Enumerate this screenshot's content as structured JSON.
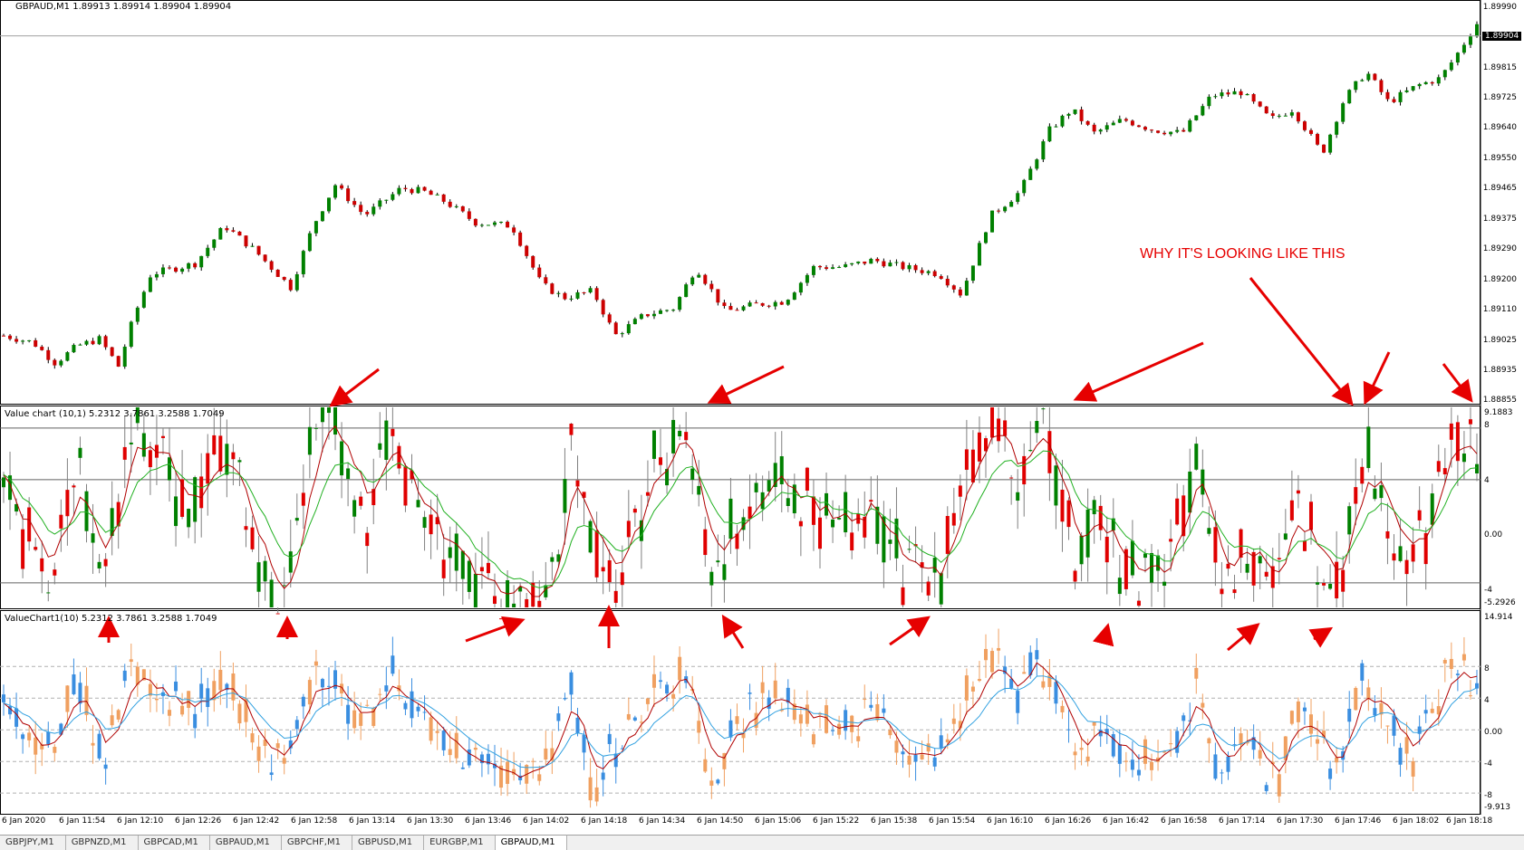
{
  "main_chart": {
    "header": "GBPAUD,M1  1.89913 1.89914 1.89904 1.89904",
    "price_ticks": [
      "1.89990",
      "1.89815",
      "1.89725",
      "1.89640",
      "1.89550",
      "1.89465",
      "1.89375",
      "1.89290",
      "1.89200",
      "1.89110",
      "1.89025",
      "1.88935",
      "1.88855"
    ],
    "current_price": "1.89904",
    "tick_min": 1.88855,
    "tick_max": 1.8999,
    "current_value": 1.89904,
    "bull_color": "#008000",
    "bear_color": "#cc0000",
    "wick_color": "#000000"
  },
  "value_chart_1": {
    "header": "Value chart (10,1) 5.2312 3.7861 3.2588 1.7049",
    "ticks": [
      "9.1883",
      "8",
      "4",
      "0.00",
      "-4",
      "-5.2926"
    ],
    "up_color": "#008000",
    "down_color": "#e00000",
    "wick_color": "#808080",
    "line1_color": "#b00000",
    "line2_color": "#20b020"
  },
  "value_chart_2": {
    "header": "ValueChart1(10) 5.2312 3.7861 3.2588 1.7049",
    "ticks": [
      "14.914",
      "8",
      "4",
      "0.00",
      "-4",
      "-8",
      "-9.913"
    ],
    "up_color": "#3a8ee0",
    "down_color": "#f0a060",
    "line1_color": "#b00000",
    "line2_color": "#30a0e0"
  },
  "annotation": {
    "text": "WHY IT'S LOOKING LIKE THIS",
    "color": "#e60000"
  },
  "time_axis": [
    "6 Jan 2020",
    "6 Jan 11:54",
    "6 Jan 12:10",
    "6 Jan 12:26",
    "6 Jan 12:42",
    "6 Jan 12:58",
    "6 Jan 13:14",
    "6 Jan 13:30",
    "6 Jan 13:46",
    "6 Jan 14:02",
    "6 Jan 14:18",
    "6 Jan 14:34",
    "6 Jan 14:50",
    "6 Jan 15:06",
    "6 Jan 15:22",
    "6 Jan 15:38",
    "6 Jan 15:54",
    "6 Jan 16:10",
    "6 Jan 16:26",
    "6 Jan 16:42",
    "6 Jan 16:58",
    "6 Jan 17:14",
    "6 Jan 17:30",
    "6 Jan 17:46",
    "6 Jan 18:02",
    "6 Jan 18:18"
  ],
  "price_path": [
    {
      "t": 0,
      "v": 1.8903
    },
    {
      "t": 0.02,
      "v": 1.8901
    },
    {
      "t": 0.035,
      "v": 1.8895
    },
    {
      "t": 0.05,
      "v": 1.89
    },
    {
      "t": 0.065,
      "v": 1.8902
    },
    {
      "t": 0.078,
      "v": 1.8894
    },
    {
      "t": 0.088,
      "v": 1.8908
    },
    {
      "t": 0.1,
      "v": 1.8921
    },
    {
      "t": 0.13,
      "v": 1.8924
    },
    {
      "t": 0.15,
      "v": 1.8935
    },
    {
      "t": 0.17,
      "v": 1.8928
    },
    {
      "t": 0.195,
      "v": 1.8917
    },
    {
      "t": 0.21,
      "v": 1.8935
    },
    {
      "t": 0.225,
      "v": 1.8947
    },
    {
      "t": 0.245,
      "v": 1.8938
    },
    {
      "t": 0.27,
      "v": 1.8946
    },
    {
      "t": 0.285,
      "v": 1.8945
    },
    {
      "t": 0.3,
      "v": 1.8942
    },
    {
      "t": 0.32,
      "v": 1.8936
    },
    {
      "t": 0.345,
      "v": 1.8935
    },
    {
      "t": 0.365,
      "v": 1.8918
    },
    {
      "t": 0.38,
      "v": 1.8914
    },
    {
      "t": 0.4,
      "v": 1.8916
    },
    {
      "t": 0.415,
      "v": 1.8903
    },
    {
      "t": 0.435,
      "v": 1.8909
    },
    {
      "t": 0.455,
      "v": 1.8911
    },
    {
      "t": 0.47,
      "v": 1.8923
    },
    {
      "t": 0.49,
      "v": 1.891
    },
    {
      "t": 0.51,
      "v": 1.8912
    },
    {
      "t": 0.53,
      "v": 1.8913
    },
    {
      "t": 0.55,
      "v": 1.8923
    },
    {
      "t": 0.57,
      "v": 1.8923
    },
    {
      "t": 0.59,
      "v": 1.8925
    },
    {
      "t": 0.61,
      "v": 1.8923
    },
    {
      "t": 0.635,
      "v": 1.8921
    },
    {
      "t": 0.65,
      "v": 1.8915
    },
    {
      "t": 0.67,
      "v": 1.8938
    },
    {
      "t": 0.69,
      "v": 1.8945
    },
    {
      "t": 0.71,
      "v": 1.8963
    },
    {
      "t": 0.725,
      "v": 1.8969
    },
    {
      "t": 0.74,
      "v": 1.8962
    },
    {
      "t": 0.76,
      "v": 1.8966
    },
    {
      "t": 0.78,
      "v": 1.8963
    },
    {
      "t": 0.8,
      "v": 1.8962
    },
    {
      "t": 0.82,
      "v": 1.8973
    },
    {
      "t": 0.84,
      "v": 1.8974
    },
    {
      "t": 0.86,
      "v": 1.8966
    },
    {
      "t": 0.875,
      "v": 1.8969
    },
    {
      "t": 0.895,
      "v": 1.8956
    },
    {
      "t": 0.91,
      "v": 1.8972
    },
    {
      "t": 0.925,
      "v": 1.898
    },
    {
      "t": 0.94,
      "v": 1.8971
    },
    {
      "t": 0.96,
      "v": 1.8976
    },
    {
      "t": 0.975,
      "v": 1.8978
    },
    {
      "t": 0.985,
      "v": 1.8984
    },
    {
      "t": 1.0,
      "v": 1.8994
    }
  ],
  "value1_path": [
    {
      "t": 0,
      "v": 4
    },
    {
      "t": 0.03,
      "v": -4
    },
    {
      "t": 0.05,
      "v": 5
    },
    {
      "t": 0.07,
      "v": -3
    },
    {
      "t": 0.085,
      "v": 9
    },
    {
      "t": 0.1,
      "v": 6
    },
    {
      "t": 0.13,
      "v": 2
    },
    {
      "t": 0.15,
      "v": 8
    },
    {
      "t": 0.17,
      "v": -2
    },
    {
      "t": 0.19,
      "v": -5
    },
    {
      "t": 0.21,
      "v": 8
    },
    {
      "t": 0.225,
      "v": 9
    },
    {
      "t": 0.245,
      "v": 1
    },
    {
      "t": 0.265,
      "v": 8
    },
    {
      "t": 0.28,
      "v": 2
    },
    {
      "t": 0.3,
      "v": -2
    },
    {
      "t": 0.32,
      "v": -4
    },
    {
      "t": 0.345,
      "v": -5
    },
    {
      "t": 0.37,
      "v": -4
    },
    {
      "t": 0.385,
      "v": 6
    },
    {
      "t": 0.4,
      "v": 0
    },
    {
      "t": 0.415,
      "v": -4
    },
    {
      "t": 0.43,
      "v": 2
    },
    {
      "t": 0.46,
      "v": 9
    },
    {
      "t": 0.48,
      "v": -3
    },
    {
      "t": 0.5,
      "v": 1
    },
    {
      "t": 0.52,
      "v": 4
    },
    {
      "t": 0.55,
      "v": 2
    },
    {
      "t": 0.57,
      "v": 0
    },
    {
      "t": 0.59,
      "v": 3
    },
    {
      "t": 0.61,
      "v": -3
    },
    {
      "t": 0.635,
      "v": -4
    },
    {
      "t": 0.65,
      "v": 4
    },
    {
      "t": 0.67,
      "v": 9
    },
    {
      "t": 0.69,
      "v": 4
    },
    {
      "t": 0.7,
      "v": 9
    },
    {
      "t": 0.715,
      "v": 4
    },
    {
      "t": 0.73,
      "v": -3
    },
    {
      "t": 0.745,
      "v": 1
    },
    {
      "t": 0.77,
      "v": -4
    },
    {
      "t": 0.79,
      "v": -3
    },
    {
      "t": 0.81,
      "v": 7
    },
    {
      "t": 0.825,
      "v": -4
    },
    {
      "t": 0.845,
      "v": -1
    },
    {
      "t": 0.865,
      "v": -5
    },
    {
      "t": 0.875,
      "v": 3
    },
    {
      "t": 0.89,
      "v": -1
    },
    {
      "t": 0.905,
      "v": -5
    },
    {
      "t": 0.92,
      "v": 6
    },
    {
      "t": 0.935,
      "v": 3
    },
    {
      "t": 0.955,
      "v": -3
    },
    {
      "t": 0.97,
      "v": 2
    },
    {
      "t": 0.985,
      "v": 8
    },
    {
      "t": 1.0,
      "v": 5
    }
  ],
  "value2_path": [
    {
      "t": 0,
      "v": 3
    },
    {
      "t": 0.03,
      "v": -3
    },
    {
      "t": 0.05,
      "v": 5
    },
    {
      "t": 0.07,
      "v": -4
    },
    {
      "t": 0.085,
      "v": 8
    },
    {
      "t": 0.1,
      "v": 5
    },
    {
      "t": 0.13,
      "v": 2
    },
    {
      "t": 0.15,
      "v": 7
    },
    {
      "t": 0.17,
      "v": -1
    },
    {
      "t": 0.19,
      "v": -5
    },
    {
      "t": 0.21,
      "v": 7
    },
    {
      "t": 0.225,
      "v": 6
    },
    {
      "t": 0.245,
      "v": 1
    },
    {
      "t": 0.265,
      "v": 7
    },
    {
      "t": 0.28,
      "v": 2
    },
    {
      "t": 0.3,
      "v": -3
    },
    {
      "t": 0.32,
      "v": -3
    },
    {
      "t": 0.345,
      "v": -6
    },
    {
      "t": 0.37,
      "v": -4
    },
    {
      "t": 0.385,
      "v": 5
    },
    {
      "t": 0.4,
      "v": -8
    },
    {
      "t": 0.415,
      "v": -2
    },
    {
      "t": 0.43,
      "v": 2
    },
    {
      "t": 0.46,
      "v": 8
    },
    {
      "t": 0.48,
      "v": -6
    },
    {
      "t": 0.5,
      "v": 1
    },
    {
      "t": 0.52,
      "v": 4
    },
    {
      "t": 0.55,
      "v": 1
    },
    {
      "t": 0.57,
      "v": 0
    },
    {
      "t": 0.59,
      "v": 3
    },
    {
      "t": 0.61,
      "v": -3
    },
    {
      "t": 0.635,
      "v": -4
    },
    {
      "t": 0.65,
      "v": 3
    },
    {
      "t": 0.67,
      "v": 8
    },
    {
      "t": 0.69,
      "v": 4
    },
    {
      "t": 0.7,
      "v": 11
    },
    {
      "t": 0.715,
      "v": 4
    },
    {
      "t": 0.73,
      "v": -4
    },
    {
      "t": 0.745,
      "v": 1
    },
    {
      "t": 0.77,
      "v": -5
    },
    {
      "t": 0.79,
      "v": -3
    },
    {
      "t": 0.81,
      "v": 6
    },
    {
      "t": 0.825,
      "v": -5
    },
    {
      "t": 0.845,
      "v": -1
    },
    {
      "t": 0.865,
      "v": -7
    },
    {
      "t": 0.875,
      "v": 3
    },
    {
      "t": 0.89,
      "v": -1
    },
    {
      "t": 0.905,
      "v": -6
    },
    {
      "t": 0.92,
      "v": 7
    },
    {
      "t": 0.935,
      "v": 3
    },
    {
      "t": 0.955,
      "v": -4
    },
    {
      "t": 0.97,
      "v": 2
    },
    {
      "t": 0.985,
      "v": 9
    },
    {
      "t": 1.0,
      "v": 6
    }
  ],
  "tabs": [
    "GBPJPY,M1",
    "GBPNZD,M1",
    "GBPCAD,M1",
    "GBPAUD,M1",
    "GBPCHF,M1",
    "GBPUSD,M1",
    "EURGBP,M1",
    "GBPAUD,M1"
  ],
  "active_tab": 7
}
